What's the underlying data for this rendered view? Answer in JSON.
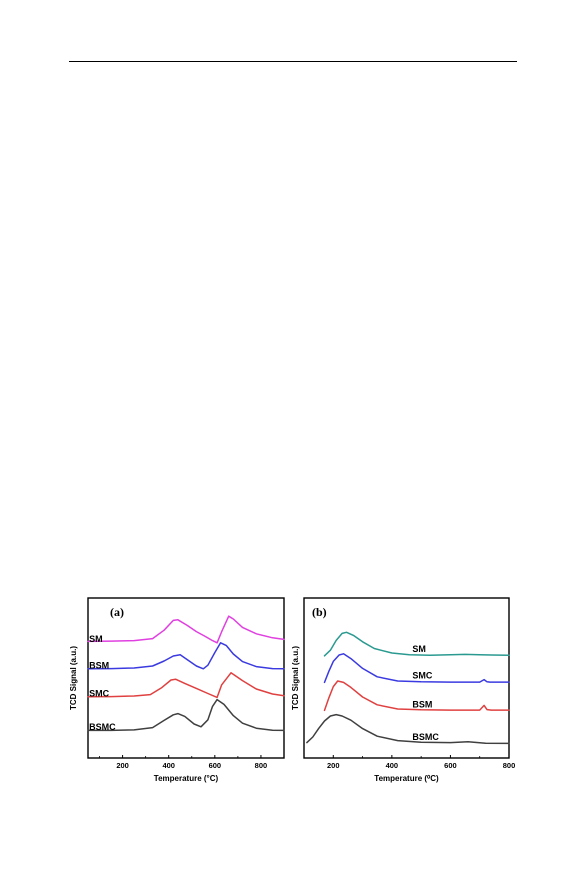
{
  "chart_data": [
    {
      "type": "line",
      "panel_label": "(a)",
      "xlabel": "Temperature (°C)",
      "ylabel": "TCD Signal (a.u.)",
      "xlim": [
        50,
        900
      ],
      "xticks": [
        200,
        400,
        600,
        800
      ],
      "grid": false,
      "legend": "none",
      "series": [
        {
          "name": "SM",
          "color": "#e040e0",
          "offset": 3.15,
          "x": [
            50,
            150,
            250,
            330,
            380,
            420,
            440,
            480,
            520,
            560,
            590,
            610,
            630,
            660,
            680,
            720,
            780,
            850,
            900
          ],
          "y": [
            0.05,
            0.06,
            0.08,
            0.15,
            0.45,
            0.8,
            0.82,
            0.62,
            0.4,
            0.22,
            0.08,
            0.0,
            0.4,
            0.95,
            0.85,
            0.55,
            0.32,
            0.18,
            0.12
          ]
        },
        {
          "name": "BSM",
          "color": "#3a3ae0",
          "offset": 2.2,
          "x": [
            50,
            150,
            250,
            330,
            380,
            420,
            450,
            480,
            520,
            550,
            570,
            600,
            625,
            650,
            680,
            720,
            780,
            850,
            900
          ],
          "y": [
            0.02,
            0.03,
            0.05,
            0.12,
            0.3,
            0.48,
            0.52,
            0.35,
            0.12,
            0.02,
            0.15,
            0.6,
            0.95,
            0.85,
            0.55,
            0.28,
            0.1,
            0.03,
            0.02
          ]
        },
        {
          "name": "SMC",
          "color": "#e04040",
          "offset": 1.2,
          "x": [
            50,
            150,
            250,
            320,
            370,
            410,
            430,
            470,
            520,
            570,
            610,
            630,
            670,
            720,
            780,
            850,
            900
          ],
          "y": [
            0.02,
            0.03,
            0.05,
            0.1,
            0.35,
            0.62,
            0.65,
            0.5,
            0.32,
            0.14,
            0.0,
            0.45,
            0.88,
            0.6,
            0.3,
            0.12,
            0.06
          ]
        },
        {
          "name": "BSMC",
          "color": "#404040",
          "offset": 0.0,
          "x": [
            50,
            150,
            250,
            330,
            380,
            420,
            440,
            470,
            510,
            540,
            570,
            590,
            610,
            640,
            680,
            720,
            780,
            850,
            900
          ],
          "y": [
            0.02,
            0.02,
            0.04,
            0.12,
            0.38,
            0.58,
            0.62,
            0.52,
            0.25,
            0.15,
            0.4,
            0.88,
            1.12,
            0.95,
            0.55,
            0.28,
            0.1,
            0.03,
            0.02
          ]
        }
      ]
    },
    {
      "type": "line",
      "panel_label": "(b)",
      "xlabel": "Temperature (⁰C)",
      "ylabel": "TCD Signal (a.u.)",
      "xlim": [
        100,
        800
      ],
      "xticks": [
        200,
        400,
        600,
        800
      ],
      "grid": false,
      "legend": "none",
      "series": [
        {
          "name": "SM",
          "color": "#2a9a90",
          "offset": 3.15,
          "x": [
            170,
            190,
            210,
            230,
            245,
            270,
            300,
            340,
            400,
            460,
            530,
            600,
            650,
            700,
            740,
            800
          ],
          "y": [
            0.0,
            0.2,
            0.55,
            0.8,
            0.84,
            0.72,
            0.5,
            0.26,
            0.1,
            0.04,
            0.02,
            0.04,
            0.05,
            0.04,
            0.03,
            0.02
          ]
        },
        {
          "name": "SMC",
          "color": "#3a3ae0",
          "offset": 2.2,
          "x": [
            170,
            185,
            200,
            220,
            235,
            260,
            300,
            350,
            420,
            500,
            600,
            700,
            715,
            725,
            735,
            800
          ],
          "y": [
            0.0,
            0.4,
            0.75,
            0.98,
            1.02,
            0.85,
            0.5,
            0.2,
            0.05,
            0.02,
            0.01,
            0.01,
            0.1,
            0.02,
            0.01,
            0.01
          ]
        },
        {
          "name": "BSM",
          "color": "#e04040",
          "offset": 1.2,
          "x": [
            170,
            185,
            200,
            215,
            235,
            260,
            300,
            350,
            420,
            500,
            600,
            700,
            715,
            725,
            740,
            800
          ],
          "y": [
            0.0,
            0.45,
            0.85,
            1.05,
            1.0,
            0.82,
            0.48,
            0.2,
            0.05,
            0.02,
            0.01,
            0.01,
            0.18,
            0.03,
            0.01,
            0.01
          ]
        },
        {
          "name": "BSMC",
          "color": "#404040",
          "offset": 0.0,
          "x": [
            110,
            130,
            150,
            170,
            190,
            210,
            230,
            260,
            300,
            350,
            420,
            500,
            600,
            660,
            680,
            720,
            800
          ],
          "y": [
            0.05,
            0.25,
            0.55,
            0.82,
            1.0,
            1.05,
            1.0,
            0.85,
            0.55,
            0.28,
            0.12,
            0.06,
            0.05,
            0.08,
            0.06,
            0.03,
            0.02
          ]
        }
      ]
    }
  ]
}
